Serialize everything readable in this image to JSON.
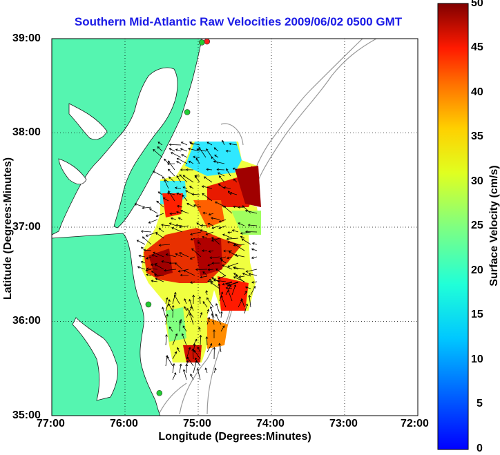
{
  "title": "Southern Mid-Atlantic Raw Velocities 2009/06/02 0500 GMT",
  "axes": {
    "xlabel": "Longitude (Degrees:Minutes)",
    "ylabel": "Latitude (Degrees:Minutes)",
    "x_ticks": [
      "77:00",
      "76:00",
      "75:00",
      "74:00",
      "73:00",
      "72:00"
    ],
    "y_ticks": [
      "39:00",
      "38:00",
      "37:00",
      "36:00",
      "35:00"
    ],
    "x_range_deg": [
      -77,
      -72
    ],
    "y_range_deg": [
      35,
      39
    ],
    "grid": "dotted"
  },
  "colorbar": {
    "label": "Surface Velocity (cm/s)",
    "ticks": [
      "50",
      "45",
      "40",
      "35",
      "30",
      "25",
      "20",
      "15",
      "10",
      "5",
      "0"
    ],
    "range": [
      0,
      50
    ],
    "colormap": "jet"
  },
  "colors": {
    "land": "#55f5b0",
    "title": "#1a1ae6",
    "station": "#22cc33",
    "station_alt": "#ff2222",
    "contour": "#999999"
  },
  "stations": [
    {
      "lon": -74.88,
      "lat": 38.97,
      "color": "#ff2222"
    },
    {
      "lon": -74.95,
      "lat": 38.96,
      "color": "#22cc33"
    },
    {
      "lon": -75.15,
      "lat": 38.22,
      "color": "#22cc33"
    },
    {
      "lon": -75.68,
      "lat": 36.18,
      "color": "#22cc33"
    },
    {
      "lon": -75.53,
      "lat": 35.24,
      "color": "#22cc33"
    }
  ]
}
